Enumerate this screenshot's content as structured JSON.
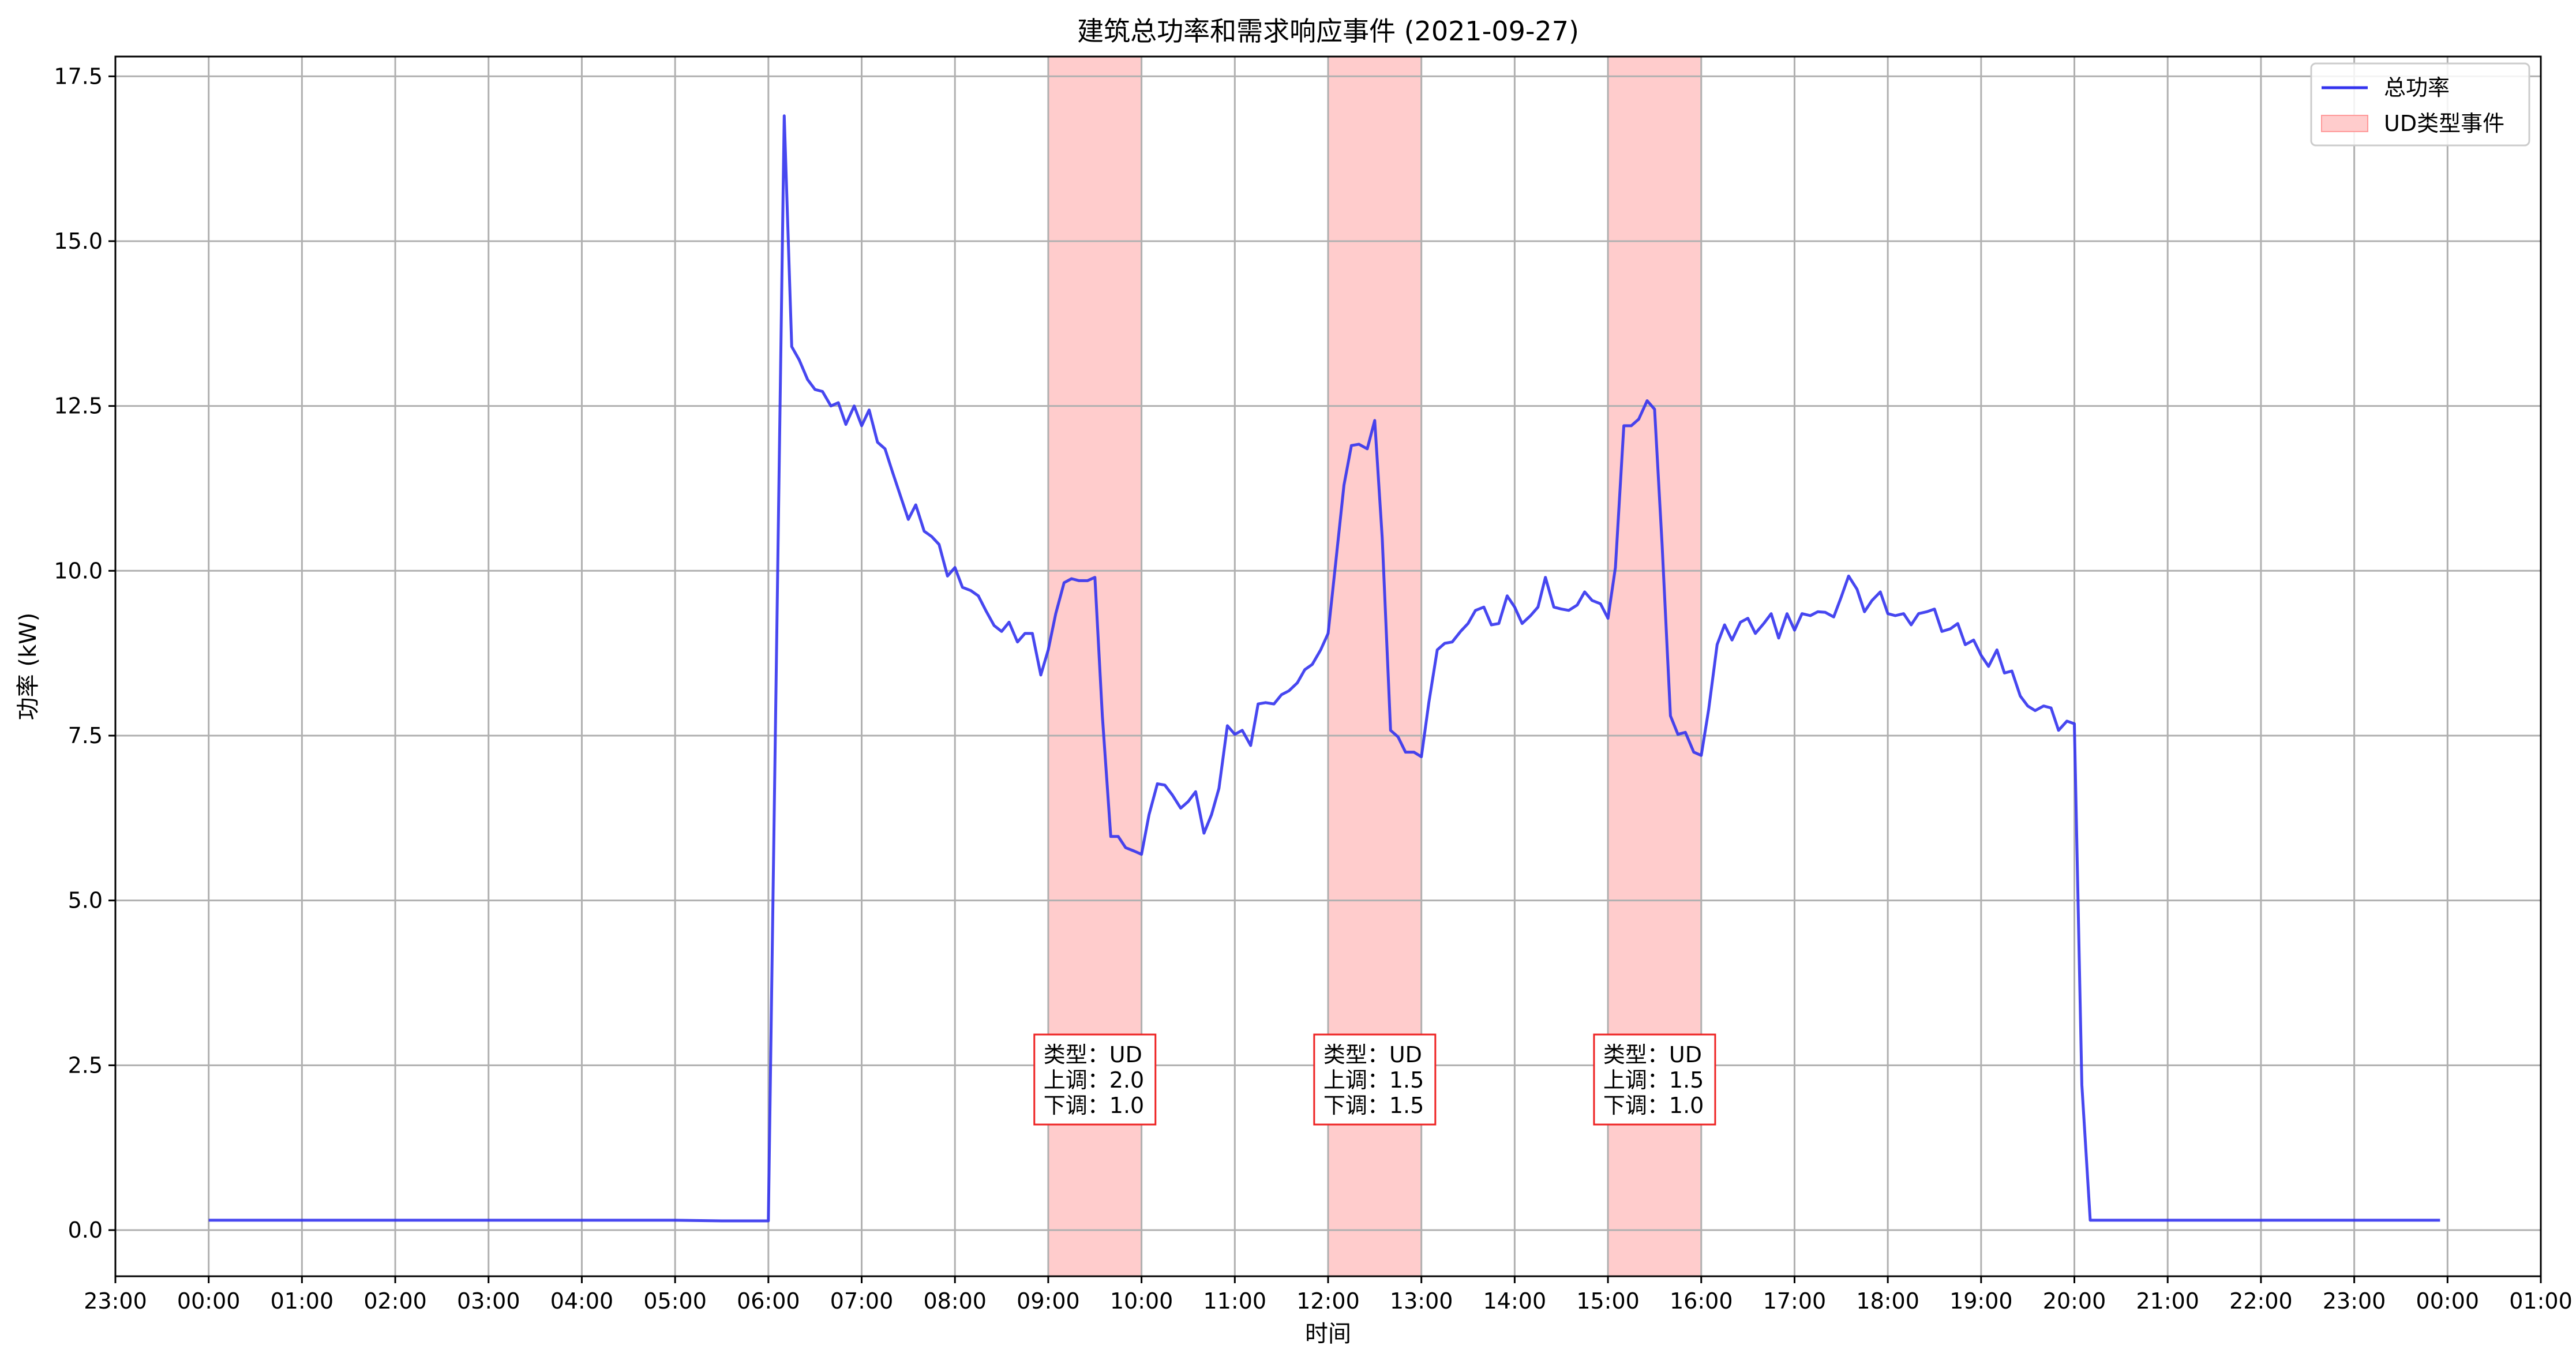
{
  "chart_data": {
    "type": "line",
    "title": "建筑总功率和需求响应事件 (2021-09-27)",
    "xlabel": "时间",
    "ylabel": "功率 (kW)",
    "xlim_hours": [
      -1.0,
      25.0
    ],
    "ylim": [
      -0.7,
      17.8
    ],
    "grid": true,
    "legend_position": "top-right",
    "x_ticks": [
      "23:00",
      "00:00",
      "01:00",
      "02:00",
      "03:00",
      "04:00",
      "05:00",
      "06:00",
      "07:00",
      "08:00",
      "09:00",
      "10:00",
      "11:00",
      "12:00",
      "13:00",
      "14:00",
      "15:00",
      "16:00",
      "17:00",
      "18:00",
      "19:00",
      "20:00",
      "21:00",
      "22:00",
      "23:00",
      "00:00",
      "01:00"
    ],
    "y_ticks": [
      "0.0",
      "2.5",
      "5.0",
      "7.5",
      "10.0",
      "12.5",
      "15.0",
      "17.5"
    ],
    "colors": {
      "line": "#3333ee",
      "event_fill": "#ffcccc",
      "annotation_border": "#ee2222",
      "grid": "#b0b0b0"
    },
    "legend": [
      {
        "label": "总功率",
        "kind": "line"
      },
      {
        "label": "UD类型事件",
        "kind": "patch"
      }
    ],
    "events": [
      {
        "start": "09:00",
        "end": "10:00",
        "lines": [
          "类型：UD",
          "上调：2.0",
          "下调：1.0"
        ]
      },
      {
        "start": "12:00",
        "end": "13:00",
        "lines": [
          "类型：UD",
          "上调：1.5",
          "下调：1.5"
        ]
      },
      {
        "start": "15:00",
        "end": "16:00",
        "lines": [
          "类型：UD",
          "上调：1.5",
          "下调：1.0"
        ]
      }
    ],
    "series": [
      {
        "name": "总功率",
        "x_hours": [
          0.0,
          5.0,
          5.5,
          6.0,
          6.17,
          6.25,
          6.33,
          6.42,
          6.5,
          6.58,
          6.67,
          6.75,
          6.83,
          6.92,
          7.0,
          7.08,
          7.17,
          7.25,
          7.33,
          7.42,
          7.5,
          7.58,
          7.67,
          7.75,
          7.83,
          7.92,
          8.0,
          8.08,
          8.17,
          8.25,
          8.33,
          8.42,
          8.5,
          8.58,
          8.67,
          8.75,
          8.83,
          8.92,
          9.0,
          9.08,
          9.17,
          9.25,
          9.33,
          9.42,
          9.5,
          9.58,
          9.67,
          9.75,
          9.83,
          9.92,
          10.0,
          10.08,
          10.17,
          10.25,
          10.33,
          10.42,
          10.5,
          10.58,
          10.67,
          10.75,
          10.83,
          10.92,
          11.0,
          11.08,
          11.17,
          11.25,
          11.33,
          11.42,
          11.5,
          11.58,
          11.67,
          11.75,
          11.83,
          11.92,
          12.0,
          12.08,
          12.17,
          12.25,
          12.33,
          12.42,
          12.5,
          12.58,
          12.67,
          12.75,
          12.83,
          12.92,
          13.0,
          13.08,
          13.17,
          13.25,
          13.33,
          13.42,
          13.5,
          13.58,
          13.67,
          13.75,
          13.83,
          13.92,
          14.0,
          14.08,
          14.17,
          14.25,
          14.33,
          14.42,
          14.5,
          14.58,
          14.67,
          14.75,
          14.83,
          14.92,
          15.0,
          15.08,
          15.17,
          15.25,
          15.33,
          15.42,
          15.5,
          15.58,
          15.67,
          15.75,
          15.83,
          15.92,
          16.0,
          16.08,
          16.17,
          16.25,
          16.33,
          16.42,
          16.5,
          16.58,
          16.67,
          16.75,
          16.83,
          16.92,
          17.0,
          17.08,
          17.17,
          17.25,
          17.33,
          17.42,
          17.5,
          17.58,
          17.67,
          17.75,
          17.83,
          17.92,
          18.0,
          18.08,
          18.17,
          18.25,
          18.33,
          18.42,
          18.5,
          18.58,
          18.67,
          18.75,
          18.83,
          18.92,
          19.0,
          19.08,
          19.17,
          19.25,
          19.33,
          19.42,
          19.5,
          19.58,
          19.67,
          19.75,
          19.83,
          19.92,
          20.0,
          20.08,
          20.17,
          20.25,
          21.0,
          22.0,
          23.0,
          23.92
        ],
        "y": [
          0.15,
          0.15,
          0.14,
          0.14,
          16.9,
          13.4,
          13.2,
          12.9,
          12.75,
          12.72,
          12.5,
          12.55,
          12.22,
          12.5,
          12.2,
          12.44,
          11.95,
          11.85,
          11.5,
          11.12,
          10.78,
          11.0,
          10.6,
          10.52,
          10.4,
          9.92,
          10.05,
          9.75,
          9.7,
          9.62,
          9.4,
          9.17,
          9.08,
          9.22,
          8.92,
          9.05,
          9.05,
          8.42,
          8.8,
          9.35,
          9.82,
          9.88,
          9.85,
          9.85,
          9.9,
          7.8,
          5.97,
          5.97,
          5.8,
          5.75,
          5.7,
          6.3,
          6.77,
          6.75,
          6.6,
          6.4,
          6.5,
          6.65,
          6.02,
          6.3,
          6.7,
          7.65,
          7.52,
          7.58,
          7.35,
          7.98,
          8.0,
          7.98,
          8.12,
          8.18,
          8.3,
          8.5,
          8.58,
          8.8,
          9.05,
          10.1,
          11.3,
          11.9,
          11.92,
          11.85,
          12.28,
          10.5,
          7.58,
          7.48,
          7.25,
          7.25,
          7.18,
          8.0,
          8.8,
          8.9,
          8.92,
          9.08,
          9.2,
          9.4,
          9.45,
          9.18,
          9.2,
          9.62,
          9.45,
          9.2,
          9.32,
          9.45,
          9.9,
          9.45,
          9.42,
          9.4,
          9.48,
          9.68,
          9.55,
          9.5,
          9.28,
          10.05,
          12.2,
          12.2,
          12.3,
          12.58,
          12.45,
          10.4,
          7.8,
          7.52,
          7.55,
          7.25,
          7.2,
          7.9,
          8.88,
          9.18,
          8.95,
          9.22,
          9.28,
          9.05,
          9.2,
          9.35,
          8.98,
          9.35,
          9.1,
          9.35,
          9.32,
          9.38,
          9.37,
          9.3,
          9.6,
          9.92,
          9.72,
          9.38,
          9.55,
          9.68,
          9.35,
          9.32,
          9.35,
          9.18,
          9.35,
          9.38,
          9.42,
          9.08,
          9.12,
          9.2,
          8.88,
          8.95,
          8.72,
          8.55,
          8.8,
          8.45,
          8.48,
          8.1,
          7.95,
          7.88,
          7.95,
          7.92,
          7.58,
          7.72,
          7.68,
          2.2,
          0.15,
          0.15,
          0.15,
          0.15,
          0.15,
          0.15
        ]
      }
    ]
  }
}
